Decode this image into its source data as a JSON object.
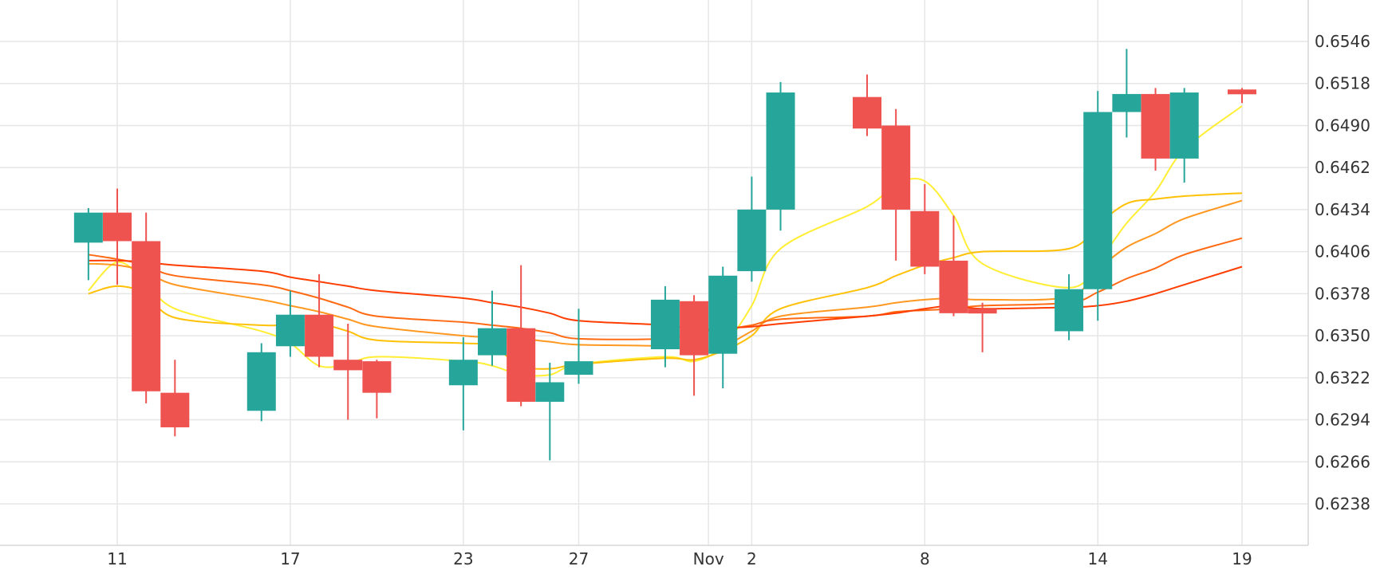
{
  "chart_data": {
    "type": "candlestick",
    "title": "",
    "xlabel": "",
    "ylabel": "",
    "ylim": [
      0.621,
      0.6574
    ],
    "y_ticks": [
      "0.6238",
      "0.6266",
      "0.6294",
      "0.6322",
      "0.6350",
      "0.6378",
      "0.6406",
      "0.6434",
      "0.6462",
      "0.6490",
      "0.6518",
      "0.6546"
    ],
    "x_ticks": [
      {
        "label": "11",
        "date": "2023-10-11"
      },
      {
        "label": "17",
        "date": "2023-10-17"
      },
      {
        "label": "23",
        "date": "2023-10-23"
      },
      {
        "label": "27",
        "date": "2023-10-27"
      },
      {
        "label": "Nov",
        "date": "2023-10-31T12:00"
      },
      {
        "label": "2",
        "date": "2023-11-02"
      },
      {
        "label": "8",
        "date": "2023-11-08"
      },
      {
        "label": "14",
        "date": "2023-11-14"
      },
      {
        "label": "19",
        "date": "2023-11-19"
      }
    ],
    "grid": true,
    "colors": {
      "up": "#26a69a",
      "down": "#ef5350",
      "grid": "#e6e6e6",
      "axis": "#d6d6d6"
    },
    "candles": [
      {
        "date": "2023-10-10",
        "open": 0.6412,
        "high": 0.6435,
        "low": 0.6387,
        "close": 0.6432
      },
      {
        "date": "2023-10-11",
        "open": 0.6432,
        "high": 0.6448,
        "low": 0.6384,
        "close": 0.6413
      },
      {
        "date": "2023-10-12",
        "open": 0.6413,
        "high": 0.6432,
        "low": 0.6305,
        "close": 0.6313
      },
      {
        "date": "2023-10-13",
        "open": 0.6312,
        "high": 0.6334,
        "low": 0.6283,
        "close": 0.6289
      },
      {
        "date": "2023-10-16",
        "open": 0.63,
        "high": 0.6345,
        "low": 0.6293,
        "close": 0.6339
      },
      {
        "date": "2023-10-17",
        "open": 0.6343,
        "high": 0.638,
        "low": 0.6336,
        "close": 0.6364
      },
      {
        "date": "2023-10-18",
        "open": 0.6364,
        "high": 0.6391,
        "low": 0.6329,
        "close": 0.6336
      },
      {
        "date": "2023-10-19",
        "open": 0.6334,
        "high": 0.6358,
        "low": 0.6294,
        "close": 0.6327
      },
      {
        "date": "2023-10-20",
        "open": 0.6333,
        "high": 0.6334,
        "low": 0.6295,
        "close": 0.6312
      },
      {
        "date": "2023-10-23",
        "open": 0.6317,
        "high": 0.6349,
        "low": 0.6287,
        "close": 0.6334
      },
      {
        "date": "2023-10-24",
        "open": 0.6337,
        "high": 0.638,
        "low": 0.633,
        "close": 0.6355
      },
      {
        "date": "2023-10-25",
        "open": 0.6355,
        "high": 0.6397,
        "low": 0.6303,
        "close": 0.6306
      },
      {
        "date": "2023-10-26",
        "open": 0.6306,
        "high": 0.6332,
        "low": 0.6267,
        "close": 0.6319
      },
      {
        "date": "2023-10-27",
        "open": 0.6324,
        "high": 0.6368,
        "low": 0.6318,
        "close": 0.6333
      },
      {
        "date": "2023-10-30",
        "open": 0.6341,
        "high": 0.6383,
        "low": 0.6329,
        "close": 0.6374
      },
      {
        "date": "2023-10-31",
        "open": 0.6373,
        "high": 0.6377,
        "low": 0.631,
        "close": 0.6337
      },
      {
        "date": "2023-11-01",
        "open": 0.6338,
        "high": 0.6396,
        "low": 0.6315,
        "close": 0.639
      },
      {
        "date": "2023-11-02",
        "open": 0.6393,
        "high": 0.6456,
        "low": 0.6386,
        "close": 0.6434
      },
      {
        "date": "2023-11-03",
        "open": 0.6434,
        "high": 0.6519,
        "low": 0.642,
        "close": 0.6512
      },
      {
        "date": "2023-11-06",
        "open": 0.6509,
        "high": 0.6524,
        "low": 0.6483,
        "close": 0.6488
      },
      {
        "date": "2023-11-07",
        "open": 0.649,
        "high": 0.6501,
        "low": 0.64,
        "close": 0.6434
      },
      {
        "date": "2023-11-08",
        "open": 0.6433,
        "high": 0.6451,
        "low": 0.6391,
        "close": 0.6396
      },
      {
        "date": "2023-11-09",
        "open": 0.64,
        "high": 0.643,
        "low": 0.6363,
        "close": 0.6365
      },
      {
        "date": "2023-11-10",
        "open": 0.6368,
        "high": 0.6372,
        "low": 0.6339,
        "close": 0.6365
      },
      {
        "date": "2023-11-13",
        "open": 0.6353,
        "high": 0.6391,
        "low": 0.6347,
        "close": 0.6381
      },
      {
        "date": "2023-11-14",
        "open": 0.6381,
        "high": 0.6513,
        "low": 0.636,
        "close": 0.6499
      },
      {
        "date": "2023-11-15",
        "open": 0.6499,
        "high": 0.6541,
        "low": 0.6482,
        "close": 0.6511
      },
      {
        "date": "2023-11-16",
        "open": 0.6511,
        "high": 0.6515,
        "low": 0.646,
        "close": 0.6468
      },
      {
        "date": "2023-11-17",
        "open": 0.6468,
        "high": 0.6515,
        "low": 0.6452,
        "close": 0.6512
      },
      {
        "date": "2023-11-19",
        "open": 0.6514,
        "high": 0.6515,
        "low": 0.6505,
        "close": 0.6512
      }
    ],
    "moving_averages": [
      {
        "color": "#ffee33",
        "values": [
          [
            "2023-10-10",
            0.638
          ],
          [
            "2023-10-11",
            0.6399
          ],
          [
            "2023-10-12",
            0.6386
          ],
          [
            "2023-10-13",
            0.6368
          ],
          [
            "2023-10-16",
            0.6353
          ],
          [
            "2023-10-17",
            0.6345
          ],
          [
            "2023-10-18",
            0.633
          ],
          [
            "2023-10-19",
            0.6331
          ],
          [
            "2023-10-20",
            0.6336
          ],
          [
            "2023-10-23",
            0.6333
          ],
          [
            "2023-10-24",
            0.633
          ],
          [
            "2023-10-25",
            0.6324
          ],
          [
            "2023-10-26",
            0.6324
          ],
          [
            "2023-10-27",
            0.6331
          ],
          [
            "2023-10-30",
            0.6336
          ],
          [
            "2023-10-31",
            0.6333
          ],
          [
            "2023-11-01",
            0.6343
          ],
          [
            "2023-11-02",
            0.637
          ],
          [
            "2023-11-03",
            0.6408
          ],
          [
            "2023-11-06",
            0.6436
          ],
          [
            "2023-11-07",
            0.6451
          ],
          [
            "2023-11-08",
            0.6453
          ],
          [
            "2023-11-09",
            0.643
          ],
          [
            "2023-11-10",
            0.6398
          ],
          [
            "2023-11-13",
            0.6382
          ],
          [
            "2023-11-14",
            0.6399
          ],
          [
            "2023-11-15",
            0.6425
          ],
          [
            "2023-11-16",
            0.6446
          ],
          [
            "2023-11-17",
            0.6474
          ],
          [
            "2023-11-19",
            0.6503
          ]
        ]
      },
      {
        "color": "#ffc107",
        "values": [
          [
            "2023-10-10",
            0.6378
          ],
          [
            "2023-10-11",
            0.6383
          ],
          [
            "2023-10-12",
            0.6378
          ],
          [
            "2023-10-13",
            0.6362
          ],
          [
            "2023-10-16",
            0.6357
          ],
          [
            "2023-10-17",
            0.6358
          ],
          [
            "2023-10-18",
            0.6358
          ],
          [
            "2023-10-19",
            0.6353
          ],
          [
            "2023-10-20",
            0.6347
          ],
          [
            "2023-10-23",
            0.6345
          ],
          [
            "2023-10-24",
            0.6343
          ],
          [
            "2023-10-25",
            0.633
          ],
          [
            "2023-10-26",
            0.6328
          ],
          [
            "2023-10-27",
            0.6331
          ],
          [
            "2023-10-30",
            0.6335
          ],
          [
            "2023-10-31",
            0.6334
          ],
          [
            "2023-11-01",
            0.634
          ],
          [
            "2023-11-02",
            0.635
          ],
          [
            "2023-11-03",
            0.6368
          ],
          [
            "2023-11-06",
            0.6382
          ],
          [
            "2023-11-07",
            0.639
          ],
          [
            "2023-11-08",
            0.6397
          ],
          [
            "2023-11-09",
            0.6402
          ],
          [
            "2023-11-10",
            0.6406
          ],
          [
            "2023-11-13",
            0.6408
          ],
          [
            "2023-11-14",
            0.6424
          ],
          [
            "2023-11-15",
            0.6438
          ],
          [
            "2023-11-16",
            0.6441
          ],
          [
            "2023-11-17",
            0.6443
          ],
          [
            "2023-11-19",
            0.6445
          ]
        ]
      },
      {
        "color": "#ff9820",
        "values": [
          [
            "2023-10-10",
            0.6398
          ],
          [
            "2023-10-11",
            0.6397
          ],
          [
            "2023-10-12",
            0.6393
          ],
          [
            "2023-10-13",
            0.6384
          ],
          [
            "2023-10-16",
            0.6374
          ],
          [
            "2023-10-17",
            0.637
          ],
          [
            "2023-10-18",
            0.6366
          ],
          [
            "2023-10-19",
            0.6361
          ],
          [
            "2023-10-20",
            0.6356
          ],
          [
            "2023-10-23",
            0.635
          ],
          [
            "2023-10-24",
            0.6349
          ],
          [
            "2023-10-25",
            0.6348
          ],
          [
            "2023-10-26",
            0.6346
          ],
          [
            "2023-10-27",
            0.6344
          ],
          [
            "2023-10-30",
            0.6343
          ],
          [
            "2023-10-31",
            0.634
          ],
          [
            "2023-11-01",
            0.6343
          ],
          [
            "2023-11-02",
            0.6353
          ],
          [
            "2023-11-03",
            0.6363
          ],
          [
            "2023-11-06",
            0.6369
          ],
          [
            "2023-11-07",
            0.6372
          ],
          [
            "2023-11-08",
            0.6374
          ],
          [
            "2023-11-09",
            0.6375
          ],
          [
            "2023-11-10",
            0.6374
          ],
          [
            "2023-11-13",
            0.6376
          ],
          [
            "2023-11-14",
            0.6394
          ],
          [
            "2023-11-15",
            0.6409
          ],
          [
            "2023-11-16",
            0.6418
          ],
          [
            "2023-11-17",
            0.6428
          ],
          [
            "2023-11-19",
            0.644
          ]
        ]
      },
      {
        "color": "#ff6a13",
        "values": [
          [
            "2023-10-10",
            0.6404
          ],
          [
            "2023-10-11",
            0.6401
          ],
          [
            "2023-10-12",
            0.6397
          ],
          [
            "2023-10-13",
            0.639
          ],
          [
            "2023-10-16",
            0.6384
          ],
          [
            "2023-10-17",
            0.638
          ],
          [
            "2023-10-18",
            0.6375
          ],
          [
            "2023-10-19",
            0.6369
          ],
          [
            "2023-10-20",
            0.6363
          ],
          [
            "2023-10-23",
            0.6359
          ],
          [
            "2023-10-24",
            0.6357
          ],
          [
            "2023-10-25",
            0.6355
          ],
          [
            "2023-10-26",
            0.6352
          ],
          [
            "2023-10-27",
            0.6348
          ],
          [
            "2023-10-30",
            0.6348
          ],
          [
            "2023-10-31",
            0.6352
          ],
          [
            "2023-11-01",
            0.6354
          ],
          [
            "2023-11-02",
            0.6357
          ],
          [
            "2023-11-03",
            0.6361
          ],
          [
            "2023-11-06",
            0.6363
          ],
          [
            "2023-11-07",
            0.6366
          ],
          [
            "2023-11-08",
            0.6367
          ],
          [
            "2023-11-09",
            0.6368
          ],
          [
            "2023-11-10",
            0.637
          ],
          [
            "2023-11-13",
            0.6372
          ],
          [
            "2023-11-14",
            0.6379
          ],
          [
            "2023-11-15",
            0.6388
          ],
          [
            "2023-11-16",
            0.6395
          ],
          [
            "2023-11-17",
            0.6404
          ],
          [
            "2023-11-19",
            0.6415
          ]
        ]
      },
      {
        "color": "#ff3d00",
        "values": [
          [
            "2023-10-10",
            0.64
          ],
          [
            "2023-10-11",
            0.64
          ],
          [
            "2023-10-12",
            0.6399
          ],
          [
            "2023-10-13",
            0.6397
          ],
          [
            "2023-10-16",
            0.6393
          ],
          [
            "2023-10-17",
            0.6389
          ],
          [
            "2023-10-18",
            0.6386
          ],
          [
            "2023-10-19",
            0.6383
          ],
          [
            "2023-10-20",
            0.638
          ],
          [
            "2023-10-23",
            0.6375
          ],
          [
            "2023-10-24",
            0.6372
          ],
          [
            "2023-10-25",
            0.6369
          ],
          [
            "2023-10-26",
            0.6365
          ],
          [
            "2023-10-27",
            0.636
          ],
          [
            "2023-10-30",
            0.6357
          ],
          [
            "2023-10-31",
            0.6354
          ],
          [
            "2023-11-01",
            0.6355
          ],
          [
            "2023-11-02",
            0.6356
          ],
          [
            "2023-11-03",
            0.6358
          ],
          [
            "2023-11-06",
            0.6363
          ],
          [
            "2023-11-07",
            0.6365
          ],
          [
            "2023-11-08",
            0.6368
          ],
          [
            "2023-11-09",
            0.637
          ],
          [
            "2023-11-10",
            0.6368
          ],
          [
            "2023-11-13",
            0.6369
          ],
          [
            "2023-11-14",
            0.637
          ],
          [
            "2023-11-15",
            0.6373
          ],
          [
            "2023-11-16",
            0.6378
          ],
          [
            "2023-11-17",
            0.6384
          ],
          [
            "2023-11-19",
            0.6396
          ]
        ]
      }
    ]
  }
}
